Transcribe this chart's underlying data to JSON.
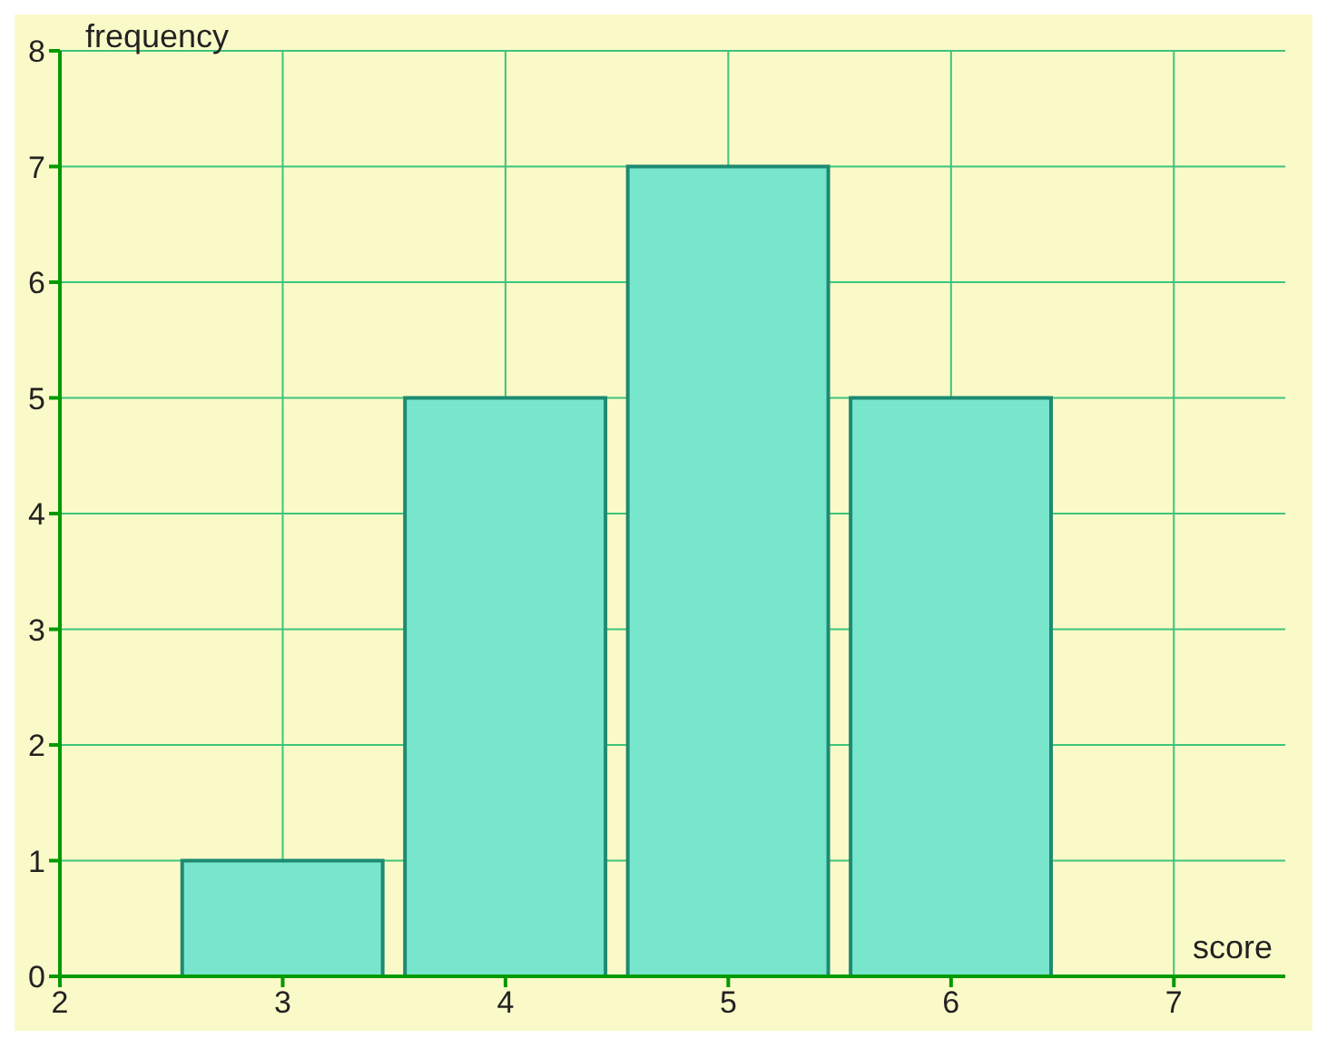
{
  "chart_data": {
    "type": "histogram",
    "xlabel": "score",
    "ylabel": "frequency",
    "bins": [
      2.5,
      3.5,
      4.5,
      5.5,
      6.5
    ],
    "values": [
      1,
      5,
      7,
      5
    ],
    "color": "#77e6cc",
    "xlim": [
      2,
      7.5
    ],
    "xticks": [
      2,
      3,
      4,
      5,
      6,
      7
    ],
    "ylim": [
      0,
      8
    ],
    "yticks": [
      0,
      1,
      2,
      3,
      4,
      5,
      6,
      7,
      8
    ],
    "grid": true
  }
}
